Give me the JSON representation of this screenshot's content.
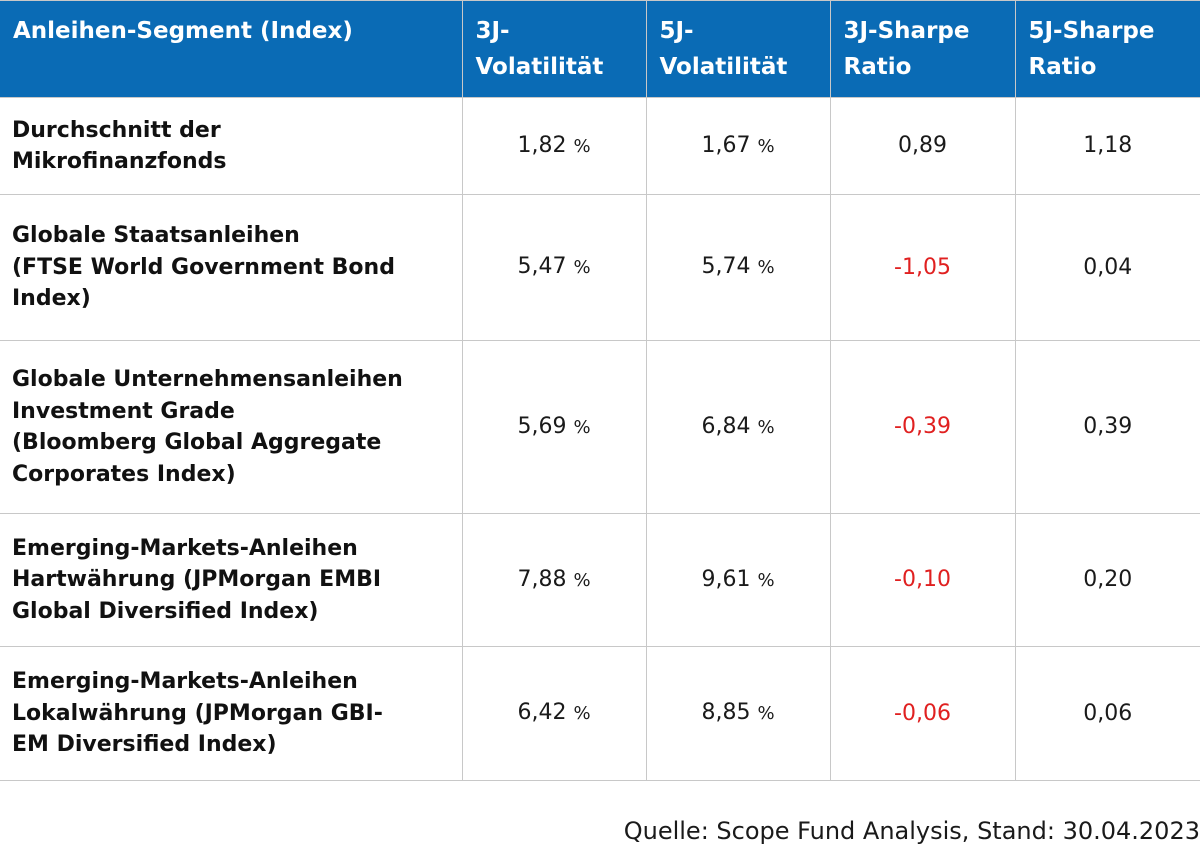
{
  "table": {
    "headers": [
      "Anleihen-Segment (Index)",
      "3J-\nVolatilität",
      "5J-\nVolatilität",
      "3J-Sharpe\nRatio",
      "5J-Sharpe\nRatio"
    ],
    "rows": [
      {
        "label_lines": [
          "Durchschnitt der",
          "Mikrofinanzfonds"
        ],
        "vol3": "1,82",
        "vol5": "1,67",
        "sharpe3": "0,89",
        "sharpe5": "1,18",
        "sharpe3_negative": false
      },
      {
        "label_lines": [
          "Globale Staatsanleihen",
          "(FTSE World Government Bond",
          "Index)"
        ],
        "vol3": "5,47",
        "vol5": "5,74",
        "sharpe3": "-1,05",
        "sharpe5": "0,04",
        "sharpe3_negative": true
      },
      {
        "label_lines": [
          "Globale Unternehmensanleihen",
          "Investment Grade",
          "(Bloomberg Global Aggregate",
          "Corporates Index)"
        ],
        "vol3": "5,69",
        "vol5": "6,84",
        "sharpe3": "-0,39",
        "sharpe5": "0,39",
        "sharpe3_negative": true
      },
      {
        "label_lines": [
          "Emerging-Markets-Anleihen",
          "Hartwährung (JPMorgan EMBI",
          "Global Diversified Index)"
        ],
        "vol3": "7,88",
        "vol5": "9,61",
        "sharpe3": "-0,10",
        "sharpe5": "0,20",
        "sharpe3_negative": true
      },
      {
        "label_lines": [
          "Emerging-Markets-Anleihen",
          "Lokalwährung (JPMorgan GBI-",
          "EM Diversified Index)"
        ],
        "vol3": "6,42",
        "vol5": "8,85",
        "sharpe3": "-0,06",
        "sharpe5": "0,06",
        "sharpe3_negative": true
      }
    ],
    "percent_sign": "%"
  },
  "colors": {
    "header_bg": "#0a6bb5",
    "header_text": "#ffffff",
    "negative": "#e02020",
    "grid": "#c8c8c8"
  },
  "footer": {
    "source": "Quelle: Scope Fund Analysis, Stand: 30.04.2023"
  }
}
